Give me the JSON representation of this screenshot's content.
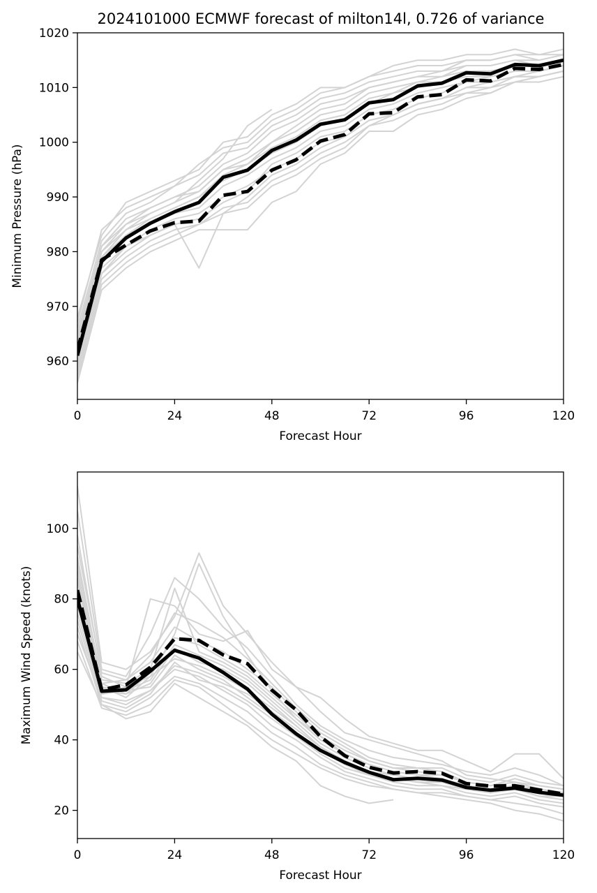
{
  "figure": {
    "title": "2024101000 ECMWF forecast of milton14l, 0.726 of variance"
  },
  "colors": {
    "ensemble": "#d3d3d3",
    "solid": "#000000",
    "dashed": "#000000"
  },
  "chart_data": [
    {
      "type": "line",
      "title": "2024101000 ECMWF forecast of milton14l, 0.726 of variance",
      "xlabel": "Forecast Hour",
      "ylabel": "Minimum Pressure (hPa)",
      "xlim": [
        0,
        120
      ],
      "ylim": [
        953,
        1020
      ],
      "xticks": [
        0,
        24,
        48,
        72,
        96,
        120
      ],
      "yticks": [
        960,
        970,
        980,
        990,
        1000,
        1010,
        1020
      ],
      "grid": false,
      "x": [
        0,
        6,
        12,
        18,
        24,
        30,
        36,
        42,
        48,
        54,
        60,
        66,
        72,
        78,
        84,
        90,
        96,
        102,
        108,
        114,
        120
      ],
      "series": [
        {
          "style": "solid",
          "values": [
            961,
            978.2,
            982.5,
            985.2,
            987.3,
            989,
            993.6,
            994.9,
            998.5,
            1000.4,
            1003.3,
            1004.1,
            1007.2,
            1007.8,
            1010.3,
            1010.8,
            1012.7,
            1012.5,
            1014.2,
            1014,
            1015
          ]
        },
        {
          "style": "dashed",
          "values": [
            962,
            978.5,
            981.2,
            983.8,
            985.3,
            985.6,
            990.3,
            991,
            994.9,
            996.8,
            1000.2,
            1001.4,
            1005.2,
            1005.4,
            1008.3,
            1008.7,
            1011.4,
            1011.2,
            1013.5,
            1013.3,
            1014.2
          ]
        }
      ],
      "ensemble": [
        [
          968,
          983,
          989,
          991,
          993,
          995,
          1000,
          1001,
          1005,
          1007,
          1010,
          1010,
          1012,
          1014,
          1015,
          1015,
          1016,
          1016,
          1017,
          1016,
          1017
        ],
        [
          966,
          982,
          987,
          989,
          992,
          994,
          998,
          999,
          1003,
          1005,
          1008,
          1009,
          1011,
          1012,
          1013,
          1013,
          1015,
          1015,
          1016,
          1015,
          1016
        ],
        [
          965,
          981,
          986,
          988,
          990,
          992,
          996,
          998,
          1002,
          1004,
          1007,
          1008,
          1010,
          1011,
          1012,
          1013,
          1014,
          1014,
          1015,
          1015,
          1016
        ],
        [
          964,
          980,
          985,
          987,
          989,
          991,
          995,
          997,
          1000,
          1002,
          1005,
          1006,
          1009,
          1010,
          1011,
          1012,
          1013,
          1013,
          1014,
          1014,
          1015
        ],
        [
          963,
          979,
          984,
          986,
          988,
          990,
          994,
          996,
          999,
          1001,
          1004,
          1005,
          1008,
          1009,
          1010,
          1011,
          1012,
          1012,
          1013,
          1013,
          1014
        ],
        [
          962,
          978,
          983,
          985,
          987,
          988,
          992,
          994,
          997,
          999,
          1002,
          1003,
          1006,
          1007,
          1009,
          1010,
          1011,
          1011,
          1012,
          1012,
          1013
        ],
        [
          960,
          977,
          981,
          984,
          986,
          987,
          990,
          992,
          995,
          997,
          1000,
          1001,
          1004,
          1005,
          1007,
          1008,
          1010,
          1010,
          1011,
          1011,
          1012
        ],
        [
          958,
          975,
          979,
          982,
          984,
          985,
          988,
          989,
          993,
          995,
          998,
          1000,
          1003,
          1004,
          1006,
          1007,
          1009,
          1009,
          1011,
          1012,
          1013
        ],
        [
          956,
          973,
          977,
          980,
          982,
          984,
          984,
          984,
          989,
          991,
          996,
          998,
          1002,
          1002,
          1005,
          1006,
          1008,
          1009,
          1011,
          1012,
          1013
        ],
        [
          961,
          976,
          980,
          983,
          985,
          977,
          987,
          988,
          992,
          994,
          997,
          999,
          1003,
          1005,
          1007,
          1008,
          1009,
          1010,
          1012,
          1013,
          1014
        ],
        [
          967,
          984,
          988,
          990,
          992,
          996,
          999,
          1000,
          1004,
          1006,
          1009,
          1010,
          1012,
          1013,
          1014,
          1014,
          1015,
          1015,
          1016,
          1016,
          1016
        ],
        [
          963,
          980,
          984,
          987,
          989,
          993,
          997,
          1003,
          1006,
          null,
          null,
          null,
          null,
          null,
          null,
          null,
          null,
          null,
          null,
          null,
          null
        ],
        [
          962,
          979,
          983,
          986,
          988,
          990,
          993,
          995,
          998,
          1000,
          1003,
          1004,
          1007,
          1009,
          1011,
          1011,
          1013,
          1013,
          1014,
          1014,
          1015
        ],
        [
          959,
          976,
          981,
          983,
          985,
          986,
          989,
          991,
          996,
          998,
          1001,
          1002,
          1005,
          1006,
          1008,
          1009,
          1011,
          1012,
          1013,
          1013,
          1014
        ],
        [
          964,
          981,
          985,
          988,
          990,
          991,
          995,
          996,
          1000,
          1003,
          1006,
          1007,
          1010,
          1011,
          1012,
          1012,
          1014,
          1014,
          1015,
          1014,
          1015
        ],
        [
          957,
          974,
          978,
          981,
          983,
          985,
          987,
          990,
          994,
          996,
          999,
          1001,
          1004,
          1005,
          1007,
          1008,
          1010,
          1011,
          1012,
          1012,
          1013
        ]
      ]
    },
    {
      "type": "line",
      "title": "",
      "xlabel": "Forecast Hour",
      "ylabel": "Maximum Wind Speed (knots)",
      "xlim": [
        0,
        120
      ],
      "ylim": [
        12,
        116
      ],
      "xticks": [
        0,
        24,
        48,
        72,
        96,
        120
      ],
      "yticks": [
        20,
        40,
        60,
        80,
        100
      ],
      "grid": false,
      "x": [
        0,
        6,
        12,
        18,
        24,
        30,
        36,
        42,
        48,
        54,
        60,
        66,
        72,
        78,
        84,
        90,
        96,
        102,
        108,
        114,
        120
      ],
      "series": [
        {
          "style": "solid",
          "values": [
            80,
            53.8,
            54.2,
            59.5,
            65.4,
            63.2,
            59.1,
            54.4,
            47.3,
            41.7,
            37,
            33.6,
            30.8,
            28.7,
            29.1,
            28.6,
            26.5,
            25.7,
            26.3,
            25.1,
            24.3
          ]
        },
        {
          "style": "dashed",
          "values": [
            82.5,
            54.2,
            55.6,
            60.6,
            68.7,
            68.2,
            64.1,
            61.6,
            54.1,
            48.5,
            40.9,
            35.5,
            32.2,
            30.6,
            31,
            30.5,
            27.6,
            26.9,
            27,
            25.8,
            24.6
          ]
        }
      ],
      "ensemble": [
        [
          112,
          62,
          60,
          65,
          75,
          93,
          78,
          70,
          62,
          55,
          48,
          42,
          40,
          38,
          36,
          34,
          30,
          29,
          28,
          27,
          26
        ],
        [
          105,
          60,
          58,
          70,
          86,
          80,
          72,
          66,
          58,
          50,
          44,
          40,
          37,
          35,
          34,
          33,
          31,
          30,
          32,
          30,
          27
        ],
        [
          98,
          58,
          55,
          80,
          78,
          70,
          68,
          71,
          60,
          55,
          52,
          46,
          41,
          39,
          37,
          37,
          34,
          31,
          36,
          36,
          29
        ],
        [
          92,
          56,
          57,
          62,
          72,
          68,
          65,
          60,
          55,
          48,
          42,
          38,
          34,
          32,
          31,
          30,
          28,
          27,
          28,
          26,
          25
        ],
        [
          88,
          55,
          52,
          58,
          70,
          90,
          75,
          64,
          54,
          46,
          40,
          36,
          33,
          31,
          30,
          29,
          27,
          26,
          27,
          25,
          24
        ],
        [
          85,
          54,
          53,
          56,
          66,
          62,
          60,
          56,
          50,
          44,
          38,
          34,
          31,
          29,
          28,
          27,
          26,
          25,
          26,
          24,
          23
        ],
        [
          80,
          53,
          54,
          55,
          64,
          60,
          57,
          52,
          47,
          42,
          37,
          33,
          30,
          28,
          27,
          27,
          25,
          24,
          25,
          23,
          22
        ],
        [
          76,
          52,
          50,
          54,
          60,
          58,
          54,
          50,
          44,
          40,
          35,
          31,
          29,
          27,
          26,
          26,
          24,
          23,
          24,
          22,
          21
        ],
        [
          72,
          50,
          48,
          52,
          58,
          56,
          52,
          48,
          42,
          38,
          33,
          30,
          28,
          26,
          25,
          25,
          24,
          23,
          22,
          21,
          19
        ],
        [
          68,
          49,
          47,
          50,
          57,
          55,
          50,
          45,
          40,
          36,
          32,
          29,
          27,
          26,
          25,
          24,
          23,
          22,
          20,
          19,
          17
        ],
        [
          65,
          50,
          46,
          48,
          56,
          52,
          48,
          44,
          38,
          34,
          27,
          24,
          22,
          23,
          null,
          null,
          null,
          null,
          null,
          null,
          null
        ],
        [
          90,
          57,
          56,
          60,
          83,
          65,
          62,
          58,
          52,
          46,
          41,
          37,
          34,
          32,
          32,
          31,
          28,
          27,
          29,
          27,
          26
        ],
        [
          74,
          51,
          49,
          53,
          62,
          57,
          55,
          51,
          46,
          41,
          36,
          32,
          30,
          29,
          28,
          28,
          27,
          26,
          26,
          25,
          25
        ],
        [
          82,
          55,
          54,
          57,
          67,
          64,
          61,
          57,
          51,
          45,
          39,
          35,
          32,
          30,
          29,
          29,
          27,
          26,
          27,
          26,
          25
        ],
        [
          70,
          52,
          51,
          54,
          61,
          59,
          56,
          53,
          48,
          43,
          38,
          34,
          31,
          29,
          28,
          28,
          26,
          25,
          26,
          25,
          24
        ],
        [
          95,
          59,
          57,
          64,
          76,
          73,
          69,
          63,
          56,
          49,
          43,
          39,
          35,
          33,
          32,
          32,
          29,
          28,
          30,
          28,
          27
        ],
        [
          78,
          53,
          55,
          58,
          63,
          61,
          58,
          54,
          49,
          44,
          38,
          34,
          31,
          30,
          29,
          28,
          26,
          25,
          26,
          24,
          24
        ],
        [
          86,
          56,
          53,
          59,
          69,
          67,
          63,
          59,
          53,
          47,
          41,
          36,
          33,
          31,
          30,
          30,
          28,
          27,
          28,
          26,
          25
        ]
      ]
    }
  ]
}
